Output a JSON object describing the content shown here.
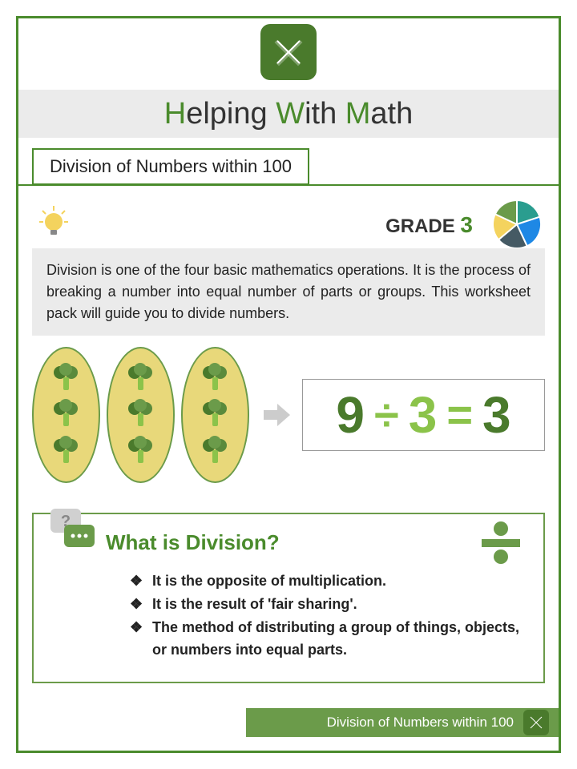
{
  "colors": {
    "primary_green": "#4a8b2c",
    "dark_green": "#4a7a2c",
    "mid_green": "#6b9b4a",
    "light_green": "#8bc34a",
    "bg_gray": "#ebebeb",
    "oval_yellow": "#e8d87a",
    "text": "#222222"
  },
  "header": {
    "title_h": "H",
    "title_1": "elping ",
    "title_w": "W",
    "title_2": "ith ",
    "title_m": "M",
    "title_3": "ath"
  },
  "subtitle": "Division of Numbers within 100",
  "grade": {
    "label": "GRADE ",
    "number": "3"
  },
  "pie_chart": {
    "segments": [
      {
        "color": "#2a9d8f",
        "start": 0,
        "end": 72
      },
      {
        "color": "#1e88e5",
        "start": 72,
        "end": 155
      },
      {
        "color": "#455a64",
        "start": 155,
        "end": 230
      },
      {
        "color": "#f4d35e",
        "start": 230,
        "end": 295
      },
      {
        "color": "#6b9b4a",
        "start": 295,
        "end": 360
      }
    ]
  },
  "description": "Division is one of the four basic mathematics operations. It is the process of breaking a number into equal number of parts or groups. This worksheet pack will guide you to divide numbers.",
  "visual": {
    "groups": 3,
    "items_per_group": 3,
    "equation": {
      "n1": "9",
      "op1": "÷",
      "n2": "3",
      "op2": "=",
      "n3": "3",
      "n1_color": "#4a7a2c",
      "op1_color": "#8bc34a",
      "n2_color": "#8bc34a",
      "op2_color": "#8bc34a",
      "n3_color": "#4a7a2c"
    }
  },
  "info": {
    "title": "What is Division?",
    "bullets": [
      "It is the opposite of multiplication.",
      "It is the result of 'fair sharing'.",
      "The method of distributing a group of things, objects, or numbers into equal parts."
    ]
  },
  "footer": "Division of Numbers within 100"
}
